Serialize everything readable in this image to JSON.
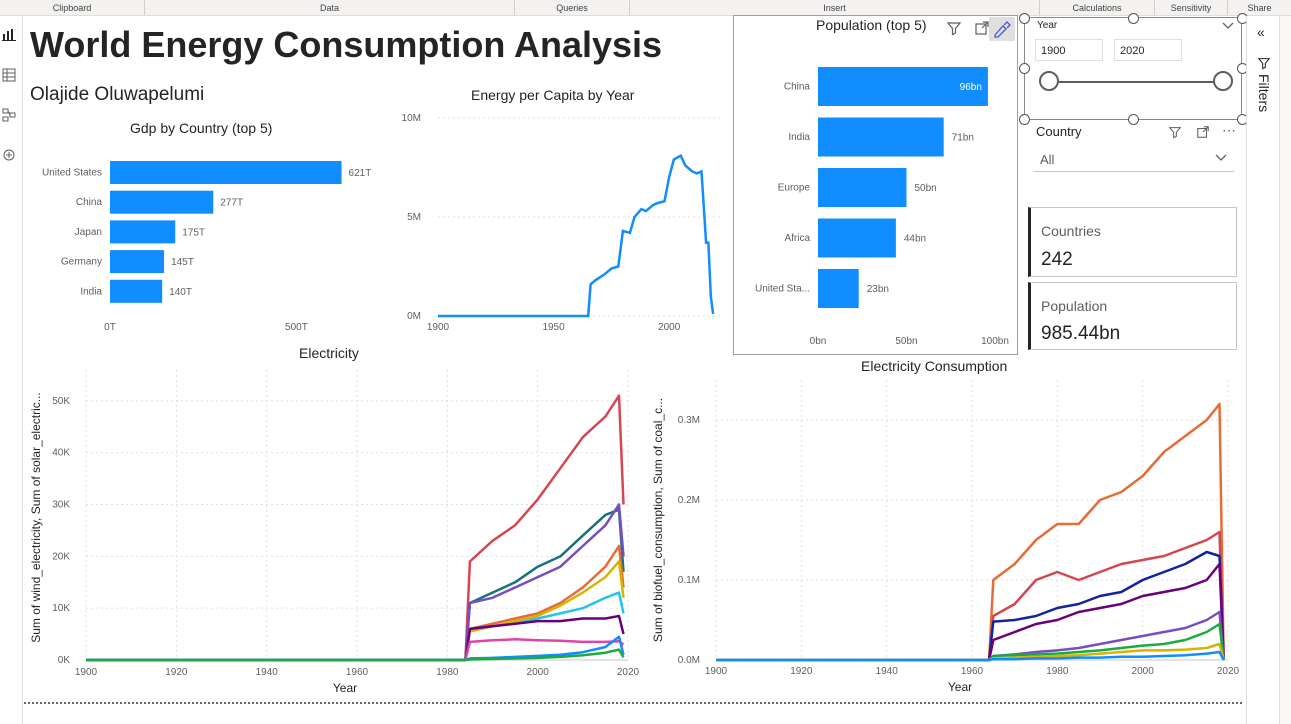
{
  "ribbon": [
    {
      "label": "Clipboard"
    },
    {
      "label": "Data"
    },
    {
      "label": "Queries"
    },
    {
      "label": "Insert"
    },
    {
      "label": "Calculations"
    },
    {
      "label": "Sensitivity"
    },
    {
      "label": "Share"
    }
  ],
  "report": {
    "title": "World Energy Consumption Analysis",
    "author": "Olajide Oluwapelumi"
  },
  "gdp_chart": {
    "title": "Gdp by Country (top 5)",
    "categories": [
      "United States",
      "China",
      "Japan",
      "Germany",
      "India"
    ],
    "values": [
      621,
      277,
      175,
      145,
      140
    ],
    "labels": [
      "621T",
      "277T",
      "175T",
      "145T",
      "140T"
    ],
    "xticks": [
      "0T",
      "500T"
    ],
    "xlim": [
      0,
      700
    ]
  },
  "energy_chart": {
    "title": "Energy per Capita by Year",
    "yticks": [
      "0M",
      "5M",
      "10M"
    ],
    "xticks": [
      "1900",
      "1950",
      "2000"
    ],
    "x": [
      1900,
      1965,
      1966,
      1968,
      1972,
      1975,
      1978,
      1980,
      1983,
      1985,
      1988,
      1990,
      1993,
      1995,
      1998,
      2000,
      2002,
      2005,
      2007,
      2010,
      2012,
      2014,
      2016,
      2017,
      2018,
      2019
    ],
    "y": [
      0,
      0,
      1.6,
      1.8,
      2.1,
      2.4,
      2.5,
      4.3,
      4.2,
      5.0,
      5.4,
      5.3,
      5.6,
      5.7,
      5.8,
      7.0,
      7.9,
      8.1,
      7.6,
      7.3,
      7.2,
      7.3,
      3.7,
      3.7,
      1.0,
      0.1
    ]
  },
  "population_chart": {
    "title": "Population (top 5)",
    "categories": [
      "China",
      "India",
      "Europe",
      "Africa",
      "United Sta..."
    ],
    "values": [
      96,
      71,
      50,
      44,
      23
    ],
    "labels": [
      "96bn",
      "71bn",
      "50bn",
      "44bn",
      "23bn"
    ],
    "xticks": [
      "0bn",
      "50bn",
      "100bn"
    ],
    "xlim": [
      0,
      100
    ]
  },
  "year_slicer": {
    "label": "Year",
    "start": "1900",
    "end": "2020"
  },
  "country_slicer": {
    "label": "Country",
    "value": "All"
  },
  "cards": {
    "countries": {
      "label": "Countries",
      "value": "242"
    },
    "population": {
      "label": "Population",
      "value": "985.44bn"
    }
  },
  "filters_pane": {
    "label": "Filters"
  },
  "electricity_chart": {
    "title": "Electricity",
    "ylabel": "Sum of wind_electricity, Sum of solar_electric...",
    "xlabel": "Year",
    "yticks": [
      "0K",
      "10K",
      "20K",
      "30K",
      "40K",
      "50K"
    ],
    "xticks": [
      "1900",
      "1920",
      "1940",
      "1960",
      "1980",
      "2000",
      "2020"
    ]
  },
  "consumption_chart": {
    "title": "Electricity Consumption",
    "ylabel": "Sum of biofuel_consumption, Sum of coal_c...",
    "xlabel": "Year",
    "yticks": [
      "0.0M",
      "0.1M",
      "0.2M",
      "0.3M"
    ],
    "xticks": [
      "1900",
      "1920",
      "1940",
      "1960",
      "1980",
      "2000",
      "2020"
    ]
  },
  "chart_data": [
    {
      "type": "bar",
      "title": "Gdp by Country (top 5)",
      "categories": [
        "United States",
        "China",
        "Japan",
        "Germany",
        "India"
      ],
      "values": [
        621,
        277,
        175,
        145,
        140
      ],
      "xlim": [
        0,
        700
      ]
    },
    {
      "type": "line",
      "title": "Energy per Capita by Year",
      "x": [
        1900,
        1965,
        1966,
        1968,
        1972,
        1975,
        1978,
        1980,
        1983,
        1985,
        1988,
        1990,
        1993,
        1995,
        1998,
        2000,
        2002,
        2005,
        2007,
        2010,
        2012,
        2014,
        2016,
        2017,
        2018,
        2019
      ],
      "y": [
        0,
        0,
        1600000,
        1800000,
        2100000,
        2400000,
        2500000,
        4300000,
        4200000,
        5000000,
        5400000,
        5300000,
        5600000,
        5700000,
        5800000,
        7000000,
        7900000,
        8100000,
        7600000,
        7300000,
        7200000,
        7300000,
        3700000,
        3700000,
        1000000,
        100000
      ],
      "ylim": [
        0,
        10000000
      ]
    },
    {
      "type": "bar",
      "title": "Population (top 5)",
      "categories": [
        "China",
        "India",
        "Europe",
        "Africa",
        "United Sta..."
      ],
      "values": [
        96,
        71,
        50,
        44,
        23
      ],
      "xlim": [
        0,
        100
      ]
    },
    {
      "type": "line",
      "title": "Electricity",
      "xlabel": "Year",
      "ylabel": "Sum of wind_electricity, Sum of solar_electric...",
      "xlim": [
        1900,
        2020
      ],
      "ylim": [
        0,
        55000
      ],
      "series": [
        {
          "color": "#d64550",
          "x": [
            1900,
            1984,
            1985,
            1990,
            1995,
            2000,
            2005,
            2010,
            2015,
            2018,
            2019
          ],
          "y": [
            0,
            0,
            19000,
            23000,
            26000,
            31000,
            37000,
            43000,
            47000,
            51000,
            30000
          ]
        },
        {
          "color": "#197278",
          "x": [
            1900,
            1984,
            1985,
            1990,
            1995,
            2000,
            2005,
            2010,
            2015,
            2018,
            2019
          ],
          "y": [
            0,
            0,
            11000,
            13000,
            15000,
            18000,
            20000,
            24000,
            28000,
            29000,
            17000
          ]
        },
        {
          "color": "#744ec2",
          "x": [
            1900,
            1984,
            1985,
            1990,
            1995,
            2000,
            2005,
            2010,
            2015,
            2018,
            2019
          ],
          "y": [
            0,
            0,
            11000,
            12000,
            14000,
            16000,
            18000,
            22000,
            26000,
            30000,
            20000
          ]
        },
        {
          "color": "#e66c37",
          "x": [
            1900,
            1984,
            1985,
            1990,
            1995,
            2000,
            2005,
            2010,
            2015,
            2018,
            2019
          ],
          "y": [
            0,
            0,
            6000,
            7000,
            8000,
            9000,
            11000,
            14000,
            18000,
            22000,
            14000
          ]
        },
        {
          "color": "#d9b300",
          "x": [
            1900,
            1984,
            1985,
            1990,
            1995,
            2000,
            2005,
            2010,
            2015,
            2018,
            2019
          ],
          "y": [
            0,
            0,
            5500,
            6500,
            7500,
            8500,
            10500,
            13000,
            16000,
            19000,
            12000
          ]
        },
        {
          "color": "#22c5e8",
          "x": [
            1900,
            1984,
            1985,
            1990,
            1995,
            2000,
            2005,
            2010,
            2015,
            2018,
            2019
          ],
          "y": [
            0,
            0,
            6000,
            6500,
            7000,
            8000,
            9000,
            10000,
            12000,
            13000,
            9000
          ]
        },
        {
          "color": "#6b007b",
          "x": [
            1900,
            1984,
            1985,
            1990,
            1995,
            2000,
            2005,
            2010,
            2015,
            2018,
            2019
          ],
          "y": [
            0,
            0,
            6000,
            6500,
            7000,
            7500,
            7500,
            8000,
            8000,
            8500,
            5000
          ]
        },
        {
          "color": "#e044a7",
          "x": [
            1900,
            1984,
            1985,
            1990,
            1995,
            2000,
            2005,
            2010,
            2015,
            2018,
            2019
          ],
          "y": [
            0,
            0,
            3500,
            3800,
            4000,
            3800,
            3700,
            3500,
            3500,
            3600,
            3000
          ]
        },
        {
          "color": "#118dff",
          "x": [
            1900,
            1984,
            1985,
            1990,
            1995,
            2000,
            2005,
            2010,
            2015,
            2018,
            2019
          ],
          "y": [
            0,
            0,
            300,
            400,
            600,
            800,
            1000,
            1500,
            2500,
            4500,
            1000
          ]
        },
        {
          "color": "#1aab40",
          "x": [
            1900,
            1984,
            1985,
            1990,
            1995,
            2000,
            2005,
            2010,
            2015,
            2018,
            2019
          ],
          "y": [
            0,
            0,
            100,
            200,
            300,
            400,
            600,
            900,
            1400,
            2000,
            500
          ]
        }
      ]
    },
    {
      "type": "line",
      "title": "Electricity Consumption",
      "xlabel": "Year",
      "ylabel": "Sum of biofuel_consumption, Sum of coal_c...",
      "xlim": [
        1900,
        2020
      ],
      "ylim": [
        0,
        0.35
      ],
      "series": [
        {
          "color": "#e66c37",
          "x": [
            1900,
            1964,
            1965,
            1970,
            1975,
            1980,
            1985,
            1990,
            1995,
            2000,
            2005,
            2010,
            2015,
            2018,
            2019
          ],
          "y": [
            0,
            0,
            0.1,
            0.12,
            0.15,
            0.17,
            0.17,
            0.2,
            0.21,
            0.23,
            0.26,
            0.28,
            0.3,
            0.32,
            0.0
          ]
        },
        {
          "color": "#d64550",
          "x": [
            1900,
            1964,
            1965,
            1970,
            1975,
            1980,
            1985,
            1990,
            1995,
            2000,
            2005,
            2010,
            2015,
            2018,
            2019
          ],
          "y": [
            0,
            0,
            0.055,
            0.07,
            0.1,
            0.11,
            0.1,
            0.11,
            0.12,
            0.125,
            0.13,
            0.14,
            0.15,
            0.16,
            0.0
          ]
        },
        {
          "color": "#12239e",
          "x": [
            1900,
            1964,
            1965,
            1970,
            1975,
            1980,
            1985,
            1990,
            1995,
            2000,
            2005,
            2010,
            2015,
            2018,
            2019
          ],
          "y": [
            0,
            0,
            0.048,
            0.05,
            0.055,
            0.065,
            0.07,
            0.08,
            0.085,
            0.1,
            0.11,
            0.12,
            0.135,
            0.13,
            0.0
          ]
        },
        {
          "color": "#6b007b",
          "x": [
            1900,
            1964,
            1965,
            1970,
            1975,
            1980,
            1985,
            1990,
            1995,
            2000,
            2005,
            2010,
            2015,
            2018,
            2019
          ],
          "y": [
            0,
            0,
            0.025,
            0.035,
            0.045,
            0.05,
            0.06,
            0.065,
            0.07,
            0.08,
            0.085,
            0.09,
            0.1,
            0.12,
            0.0
          ]
        },
        {
          "color": "#744ec2",
          "x": [
            1900,
            1964,
            1965,
            1970,
            1975,
            1980,
            1985,
            1990,
            1995,
            2000,
            2005,
            2010,
            2015,
            2018,
            2019
          ],
          "y": [
            0,
            0,
            0.005,
            0.007,
            0.01,
            0.012,
            0.015,
            0.02,
            0.025,
            0.03,
            0.035,
            0.04,
            0.05,
            0.06,
            0.0
          ]
        },
        {
          "color": "#1aab40",
          "x": [
            1900,
            1964,
            1965,
            1970,
            1975,
            1980,
            1985,
            1990,
            1995,
            2000,
            2005,
            2010,
            2015,
            2018,
            2019
          ],
          "y": [
            0,
            0,
            0.005,
            0.006,
            0.007,
            0.008,
            0.01,
            0.012,
            0.015,
            0.018,
            0.02,
            0.025,
            0.035,
            0.045,
            0.0
          ]
        },
        {
          "color": "#d9b300",
          "x": [
            1900,
            1964,
            1965,
            1970,
            1975,
            1980,
            1985,
            1990,
            1995,
            2000,
            2005,
            2010,
            2015,
            2018,
            2019
          ],
          "y": [
            0,
            0,
            0.002,
            0.003,
            0.004,
            0.005,
            0.006,
            0.008,
            0.01,
            0.012,
            0.012,
            0.013,
            0.015,
            0.02,
            0.0
          ]
        },
        {
          "color": "#118dff",
          "x": [
            1900,
            1964,
            1965,
            1970,
            1975,
            1980,
            1985,
            1990,
            1995,
            2000,
            2005,
            2010,
            2015,
            2018,
            2019
          ],
          "y": [
            0,
            0,
            0.001,
            0.001,
            0.002,
            0.002,
            0.003,
            0.003,
            0.004,
            0.004,
            0.005,
            0.006,
            0.008,
            0.01,
            0.0
          ]
        }
      ]
    }
  ]
}
